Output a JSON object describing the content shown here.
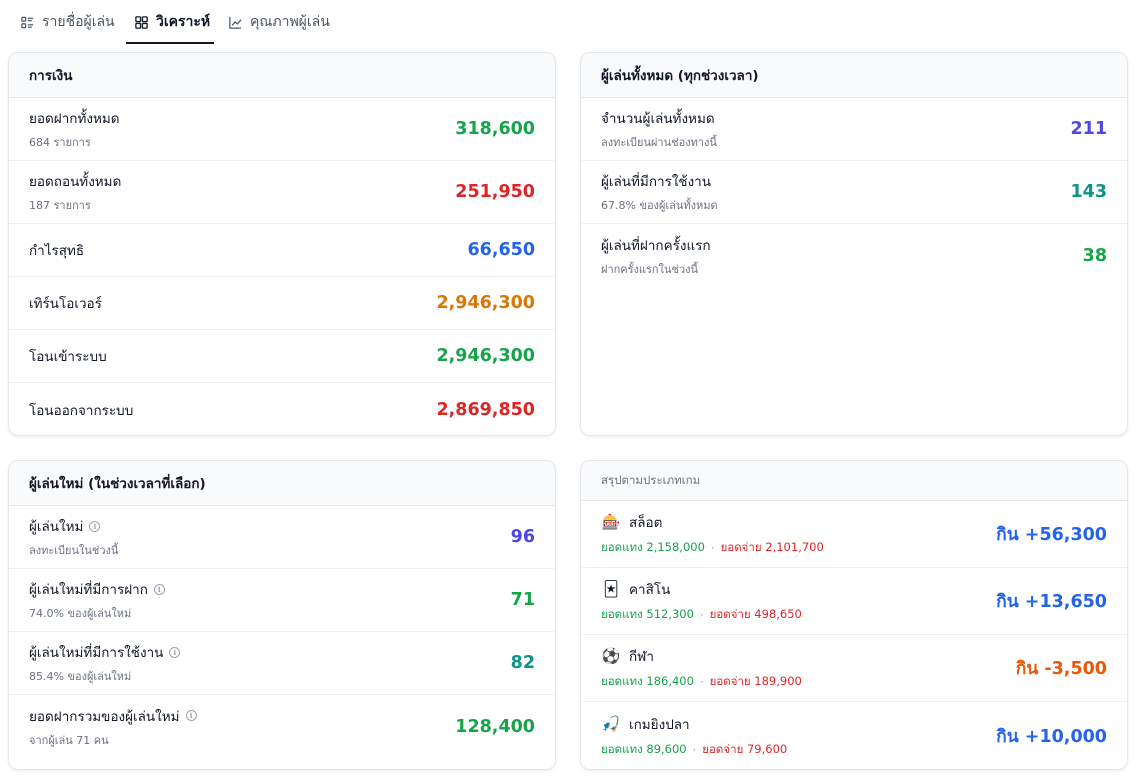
{
  "tabs": [
    {
      "label": "รายชื่อผู้เล่น",
      "icon": "list-icon",
      "active": false
    },
    {
      "label": "วิเคราะห์",
      "icon": "grid-icon",
      "active": true
    },
    {
      "label": "คุณภาพผู้เล่น",
      "icon": "line-chart-icon",
      "active": false
    }
  ],
  "finance": {
    "title": "การเงิน",
    "rows": [
      {
        "title": "ยอดฝากทั้งหมด",
        "sub": "684 รายการ",
        "value": "318,600",
        "color": "#16a34a"
      },
      {
        "title": "ยอดถอนทั้งหมด",
        "sub": "187 รายการ",
        "value": "251,950",
        "color": "#dc2626"
      },
      {
        "title": "กำไรสุทธิ",
        "sub": "",
        "value": "66,650",
        "color": "#2563eb"
      },
      {
        "title": "เทิร์นโอเวอร์",
        "sub": "",
        "value": "2,946,300",
        "color": "#d97706"
      },
      {
        "title": "โอนเข้าระบบ",
        "sub": "",
        "value": "2,946,300",
        "color": "#16a34a"
      },
      {
        "title": "โอนออกจากระบบ",
        "sub": "",
        "value": "2,869,850",
        "color": "#dc2626"
      }
    ]
  },
  "all_players": {
    "title": "ผู้เล่นทั้งหมด (ทุกช่วงเวลา)",
    "rows": [
      {
        "title": "จำนวนผู้เล่นทั้งหมด",
        "sub": "ลงทะเบียนผ่านช่องทางนี้",
        "value": "211",
        "color": "#4f46e5"
      },
      {
        "title": "ผู้เล่นที่มีการใช้งาน",
        "sub": "67.8% ของผู้เล่นทั้งหมด",
        "value": "143",
        "color": "#0d9488"
      },
      {
        "title": "ผู้เล่นที่ฝากครั้งแรก",
        "sub": "ฝากครั้งแรกในช่วงนี้",
        "value": "38",
        "color": "#16a34a"
      }
    ]
  },
  "new_players": {
    "title": "ผู้เล่นใหม่ (ในช่วงเวลาที่เลือก)",
    "rows": [
      {
        "title": "ผู้เล่นใหม่",
        "sub": "ลงทะเบียนในช่วงนี้",
        "value": "96",
        "color": "#4f46e5"
      },
      {
        "title": "ผู้เล่นใหม่ที่มีการฝาก",
        "sub": "74.0% ของผู้เล่นใหม่",
        "value": "71",
        "color": "#16a34a"
      },
      {
        "title": "ผู้เล่นใหม่ที่มีการใช้งาน",
        "sub": "85.4% ของผู้เล่นใหม่",
        "value": "82",
        "color": "#0d9488"
      },
      {
        "title": "ยอดฝากรวมของผู้เล่นใหม่",
        "sub": "จากผู้เล่น 71 คน",
        "value": "128,400",
        "color": "#16a34a"
      }
    ]
  },
  "game_summary": {
    "title": "สรุปตามประเภทเกม",
    "rows": [
      {
        "emoji": "🎰",
        "icon": "slot-machine-icon",
        "name": "สล็อต",
        "bet": "ยอดแทง 2,158,000",
        "pay": "ยอดจ่าย 2,101,700",
        "result": "กิน +56,300",
        "color": "#2563eb"
      },
      {
        "emoji": "🃏",
        "icon": "cards-icon",
        "name": "คาสิโน",
        "bet": "ยอดแทง 512,300",
        "pay": "ยอดจ่าย 498,650",
        "result": "กิน +13,650",
        "color": "#2563eb"
      },
      {
        "emoji": "⚽",
        "icon": "soccer-ball-icon",
        "name": "กีฬา",
        "bet": "ยอดแทง 186,400",
        "pay": "ยอดจ่าย 189,900",
        "result": "กิน -3,500",
        "color": "#ea580c"
      },
      {
        "emoji": "🎣",
        "icon": "fishing-icon",
        "name": "เกมยิงปลา",
        "bet": "ยอดแทง 89,600",
        "pay": "ยอดจ่าย 79,600",
        "result": "กิน +10,000",
        "color": "#2563eb"
      }
    ],
    "dot": "·"
  }
}
